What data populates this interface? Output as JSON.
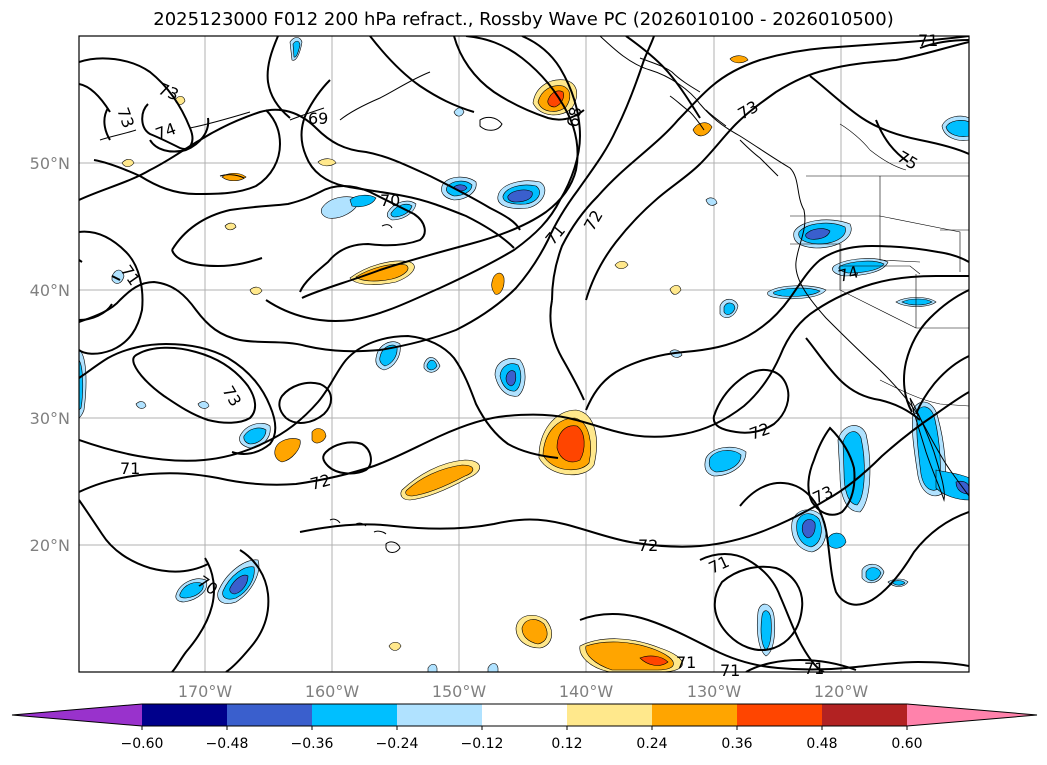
{
  "title": "2025123000 F012 200 hPa refract., Rossby Wave PC (2026010100 - 2026010500)",
  "map": {
    "lat_labels": [
      "50°N",
      "40°N",
      "30°N",
      "20°N"
    ],
    "lon_labels": [
      "170°W",
      "160°W",
      "150°W",
      "140°W",
      "130°W",
      "120°W"
    ],
    "contour_labels": [
      "73",
      "73",
      "74",
      "69",
      "68",
      "73",
      "75",
      "71",
      "70",
      "71",
      "72",
      "74",
      "71",
      "73",
      "72",
      "71",
      "72",
      "73",
      "72",
      "70",
      "71",
      "71",
      "71",
      "71"
    ]
  },
  "colorbar": {
    "tick_labels": [
      "−0.60",
      "−0.48",
      "−0.36",
      "−0.24",
      "−0.12",
      "0.12",
      "0.24",
      "0.36",
      "0.48",
      "0.60"
    ],
    "colors": [
      "#9932cc",
      "#00008b",
      "#3a5fcd",
      "#00bfff",
      "#b0e2ff",
      "#ffffff",
      "#ffe88c",
      "#ffa500",
      "#ff4500",
      "#b22222",
      "#ff82ab"
    ]
  }
}
